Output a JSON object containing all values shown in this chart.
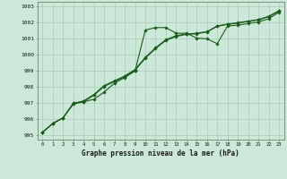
{
  "title": "Graphe pression niveau de la mer (hPa)",
  "background_color": "#cce8d8",
  "grid_color": "#aacaba",
  "line_color": "#1a5c1a",
  "x_labels": [
    "0",
    "1",
    "2",
    "3",
    "4",
    "5",
    "6",
    "7",
    "8",
    "9",
    "10",
    "11",
    "12",
    "13",
    "14",
    "15",
    "16",
    "17",
    "18",
    "19",
    "20",
    "21",
    "22",
    "23"
  ],
  "ylim_min": 994.75,
  "ylim_max": 1003.3,
  "yticks": [
    995,
    996,
    997,
    998,
    999,
    1000,
    1001,
    1002,
    1003
  ],
  "s1": [
    995.2,
    995.75,
    996.1,
    997.0,
    997.1,
    997.25,
    997.7,
    998.25,
    998.6,
    999.0,
    1001.55,
    1001.7,
    1001.7,
    1001.35,
    1001.35,
    1001.05,
    1001.0,
    1000.7,
    1001.8,
    1001.85,
    1001.95,
    1002.05,
    1002.25,
    1002.65
  ],
  "s2": [
    995.2,
    995.75,
    996.1,
    996.95,
    997.1,
    997.5,
    998.05,
    998.35,
    998.65,
    999.05,
    999.8,
    1000.4,
    1000.9,
    1001.15,
    1001.28,
    1001.32,
    1001.43,
    1001.78,
    1001.9,
    1001.98,
    1002.08,
    1002.18,
    1002.38,
    1002.72
  ],
  "s3": [
    995.2,
    995.75,
    996.1,
    997.0,
    997.15,
    997.55,
    998.1,
    998.4,
    998.7,
    999.1,
    999.85,
    1000.45,
    1000.95,
    1001.2,
    1001.3,
    1001.35,
    1001.45,
    1001.8,
    1001.92,
    1002.0,
    1002.1,
    1002.2,
    1002.4,
    1002.75
  ]
}
